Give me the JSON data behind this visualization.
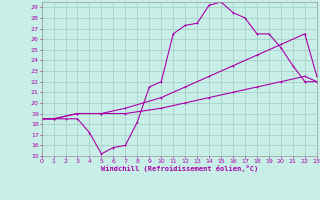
{
  "xlabel": "Windchill (Refroidissement éolien,°C)",
  "bg_color": "#c8eee8",
  "grid_color": "#a0ccc4",
  "line_color": "#aa00aa",
  "x_ticks": [
    0,
    1,
    2,
    3,
    4,
    5,
    6,
    7,
    8,
    9,
    10,
    11,
    12,
    13,
    14,
    15,
    16,
    17,
    18,
    19,
    20,
    21,
    22,
    23
  ],
  "y_ticks": [
    15,
    16,
    17,
    18,
    19,
    20,
    21,
    22,
    23,
    24,
    25,
    26,
    27,
    28,
    29
  ],
  "xlim": [
    0,
    23
  ],
  "ylim": [
    15,
    29.5
  ],
  "curve1_x": [
    0,
    1,
    2,
    3,
    4,
    5,
    6,
    7,
    8,
    9,
    10,
    11,
    12,
    13,
    14,
    15,
    16,
    17,
    18,
    19,
    20,
    21,
    22,
    23
  ],
  "curve1_y": [
    18.5,
    18.5,
    18.5,
    18.5,
    17.2,
    15.2,
    15.8,
    16.0,
    18.2,
    21.5,
    22.0,
    26.5,
    27.3,
    27.5,
    29.2,
    29.5,
    28.5,
    28.0,
    26.5,
    26.5,
    25.2,
    23.5,
    22.0,
    22.0
  ],
  "curve2_x": [
    0,
    1,
    3,
    5,
    7,
    10,
    12,
    14,
    16,
    18,
    20,
    22,
    23
  ],
  "curve2_y": [
    18.5,
    18.5,
    19.0,
    19.0,
    19.5,
    20.5,
    21.5,
    22.5,
    23.5,
    24.5,
    25.5,
    26.5,
    22.5
  ],
  "curve3_x": [
    0,
    1,
    3,
    5,
    7,
    10,
    12,
    14,
    16,
    18,
    20,
    22,
    23
  ],
  "curve3_y": [
    18.5,
    18.5,
    19.0,
    19.0,
    19.0,
    19.5,
    20.0,
    20.5,
    21.0,
    21.5,
    22.0,
    22.5,
    22.0
  ]
}
